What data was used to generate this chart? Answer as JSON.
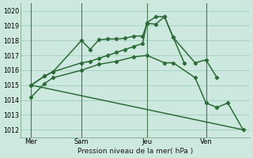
{
  "background_color": "#cde8df",
  "grid_color": "#9ecfbf",
  "line_color": "#2d6b38",
  "title": "Pression niveau de la mer( hPa )",
  "ylim": [
    1011.5,
    1020.5
  ],
  "yticks": [
    1012,
    1013,
    1014,
    1015,
    1016,
    1017,
    1018,
    1019,
    1020
  ],
  "xlim": [
    0,
    10.5
  ],
  "xtick_labels": [
    "Mer",
    "Sam",
    "Jeu",
    "Ven"
  ],
  "xtick_positions": [
    0.5,
    2.8,
    5.8,
    8.5
  ],
  "vline_positions": [
    0.5,
    2.8,
    5.8,
    8.5
  ],
  "lines": [
    {
      "x": [
        0.5,
        1.1,
        1.5,
        2.8,
        3.2,
        3.6,
        4.0,
        4.4,
        4.8,
        5.2,
        5.6,
        5.8,
        6.2,
        6.6,
        7.0,
        7.5
      ],
      "y": [
        1015.0,
        1015.6,
        1015.9,
        1018.0,
        1017.4,
        1018.05,
        1018.1,
        1018.1,
        1018.15,
        1018.3,
        1018.3,
        1019.15,
        1019.1,
        1019.6,
        1018.2,
        1016.5
      ],
      "marker": "D",
      "markersize": 2.2,
      "linewidth": 1.1
    },
    {
      "x": [
        0.5,
        1.1,
        1.5,
        2.8,
        3.2,
        3.6,
        4.0,
        4.4,
        4.8,
        5.2,
        5.6,
        5.8,
        6.2,
        6.6,
        7.0,
        8.0,
        8.5,
        9.0
      ],
      "y": [
        1015.0,
        1015.6,
        1015.9,
        1016.5,
        1016.6,
        1016.8,
        1017.0,
        1017.2,
        1017.4,
        1017.6,
        1017.8,
        1019.2,
        1019.6,
        1019.6,
        1018.2,
        1016.5,
        1016.7,
        1015.5
      ],
      "marker": "D",
      "markersize": 2.2,
      "linewidth": 1.1
    },
    {
      "x": [
        0.5,
        10.2
      ],
      "y": [
        1015.0,
        1012.0
      ],
      "marker": null,
      "markersize": 0,
      "linewidth": 1.1
    },
    {
      "x": [
        0.5,
        1.1,
        1.5,
        2.8,
        3.6,
        4.4,
        5.2,
        5.8,
        6.6,
        7.0,
        8.0,
        8.5,
        9.0,
        9.5,
        10.2
      ],
      "y": [
        1014.2,
        1015.1,
        1015.5,
        1016.0,
        1016.4,
        1016.6,
        1016.9,
        1017.0,
        1016.5,
        1016.5,
        1015.5,
        1013.8,
        1013.5,
        1013.8,
        1012.0
      ],
      "marker": "D",
      "markersize": 2.2,
      "linewidth": 1.1
    }
  ]
}
